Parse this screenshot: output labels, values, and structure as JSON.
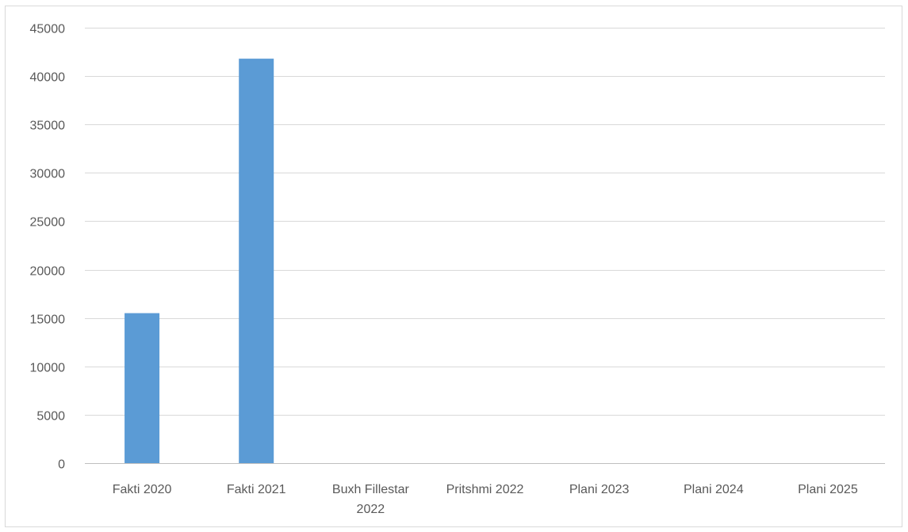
{
  "chart_data": {
    "type": "bar",
    "title": "",
    "xlabel": "",
    "ylabel": "",
    "categories": [
      [
        "Fakti 2020"
      ],
      [
        "Fakti 2021"
      ],
      [
        "Buxh Fillestar",
        "2022"
      ],
      [
        "Pritshmi 2022"
      ],
      [
        "Plani 2023"
      ],
      [
        "Plani 2024"
      ],
      [
        "Plani 2025"
      ]
    ],
    "values": [
      15500,
      41800,
      0,
      0,
      0,
      0,
      0
    ],
    "ylim": [
      0,
      45000
    ],
    "yticks": [
      0,
      5000,
      10000,
      15000,
      20000,
      25000,
      30000,
      35000,
      40000,
      45000
    ],
    "grid": true,
    "legend": "none",
    "bar_color": "#5b9bd5",
    "grid_color": "#d9d9d9",
    "label_color": "#595959"
  }
}
